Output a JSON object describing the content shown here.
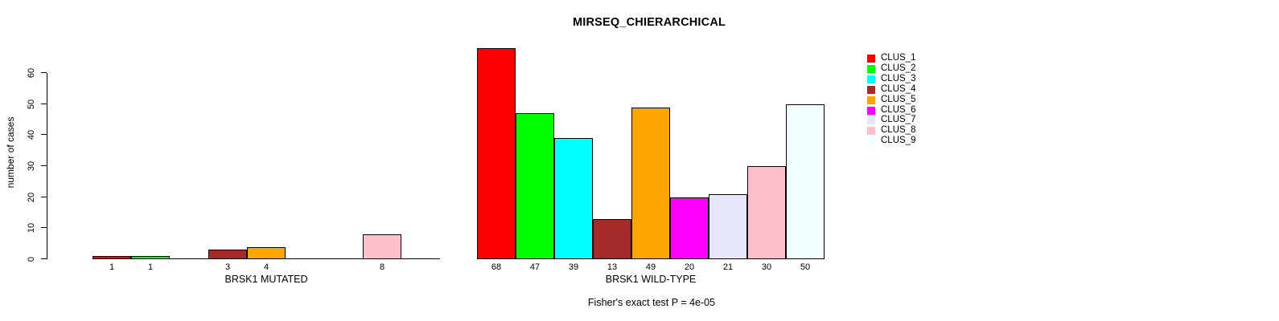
{
  "chart_data": {
    "type": "bar",
    "title": "MIRSEQ_CHIERARCHICAL",
    "ylabel": "number of cases",
    "ylim": [
      0,
      60
    ],
    "yticks": [
      0,
      10,
      20,
      30,
      40,
      50,
      60
    ],
    "grid": false,
    "bar_border_color": "#000000",
    "legend": {
      "position": "top-right",
      "entries": [
        {
          "label": "CLUS_1",
          "color": "#FF0000"
        },
        {
          "label": "CLUS_2",
          "color": "#00FF00"
        },
        {
          "label": "CLUS_3",
          "color": "#00FFFF"
        },
        {
          "label": "CLUS_4",
          "color": "#A52A2A"
        },
        {
          "label": "CLUS_5",
          "color": "#FFA500"
        },
        {
          "label": "CLUS_6",
          "color": "#FF00FF"
        },
        {
          "label": "CLUS_7",
          "color": "#E6E6FA"
        },
        {
          "label": "CLUS_8",
          "color": "#FFC0CB"
        },
        {
          "label": "CLUS_9",
          "color": "#F0FFFF"
        }
      ]
    },
    "panels": [
      {
        "xlabel": "BRSK1 MUTATED",
        "categories": [
          "CLUS_1",
          "CLUS_2",
          "CLUS_3",
          "CLUS_4",
          "CLUS_5",
          "CLUS_6",
          "CLUS_7",
          "CLUS_8",
          "CLUS_9"
        ],
        "values": [
          1,
          1,
          0,
          3,
          4,
          0,
          0,
          8,
          0
        ],
        "bar_labels": [
          "1",
          "1",
          "",
          "3",
          "4",
          "",
          "",
          "8",
          ""
        ]
      },
      {
        "xlabel": "BRSK1 WILD-TYPE",
        "categories": [
          "CLUS_1",
          "CLUS_2",
          "CLUS_3",
          "CLUS_4",
          "CLUS_5",
          "CLUS_6",
          "CLUS_7",
          "CLUS_8",
          "CLUS_9"
        ],
        "values": [
          68,
          47,
          39,
          13,
          49,
          20,
          21,
          30,
          50
        ],
        "bar_labels": [
          "68",
          "47",
          "39",
          "13",
          "49",
          "20",
          "21",
          "30",
          "50"
        ]
      }
    ],
    "annotation": "Fisher's exact test P = 4e-05"
  }
}
